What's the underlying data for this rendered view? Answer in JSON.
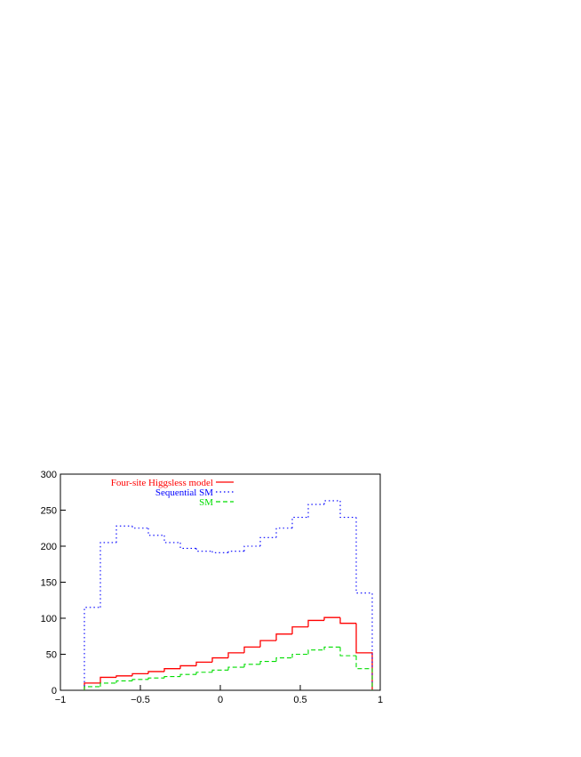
{
  "chart_data": {
    "type": "histogram",
    "bins": [
      -0.85,
      -0.75,
      -0.65,
      -0.55,
      -0.45,
      -0.35,
      -0.25,
      -0.15,
      -0.05,
      0.05,
      0.15,
      0.25,
      0.35,
      0.45,
      0.55,
      0.65,
      0.75,
      0.85,
      0.95
    ],
    "series": [
      {
        "name": "Four-site Higgsless model",
        "color": "#ff0000",
        "line_style": "solid",
        "values": [
          10,
          18,
          20,
          23,
          26,
          30,
          34,
          39,
          45,
          52,
          60,
          69,
          78,
          88,
          97,
          101,
          93,
          52
        ]
      },
      {
        "name": "Sequential SM",
        "color": "#0000ff",
        "line_style": "dotted",
        "values": [
          115,
          205,
          228,
          225,
          215,
          205,
          197,
          193,
          191,
          193,
          200,
          212,
          225,
          240,
          258,
          263,
          240,
          135
        ]
      },
      {
        "name": "SM",
        "color": "#00dd00",
        "line_style": "dashed",
        "values": [
          5,
          10,
          13,
          15,
          17,
          19,
          22,
          25,
          28,
          32,
          36,
          40,
          45,
          50,
          56,
          60,
          48,
          30
        ]
      }
    ],
    "xlim": [
      -1,
      1
    ],
    "xticks": [
      {
        "value": -1,
        "label": "−1"
      },
      {
        "value": -0.5,
        "label": "−0.5"
      },
      0,
      0.5,
      1
    ],
    "ylim": [
      0,
      300
    ],
    "yticks": [
      0,
      50,
      100,
      150,
      200,
      250,
      300
    ],
    "legend": "upper-left"
  }
}
